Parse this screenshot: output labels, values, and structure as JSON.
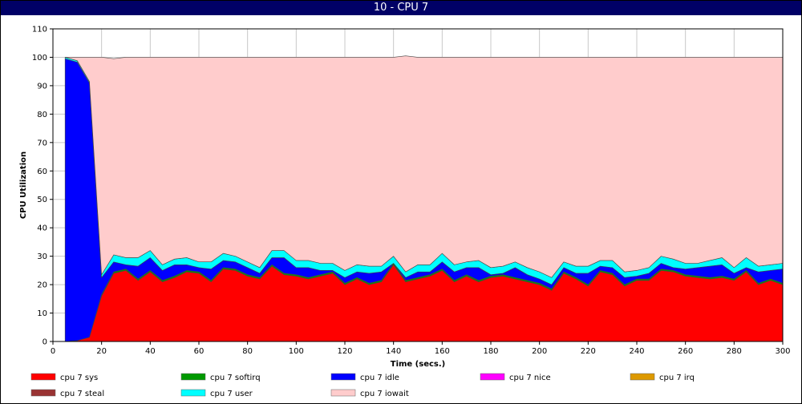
{
  "window": {
    "title": "10 - CPU 7"
  },
  "chart_data": {
    "type": "area",
    "stacked": true,
    "xlabel": "Time (secs.)",
    "ylabel": "CPU Utilization",
    "xlim": [
      0,
      300
    ],
    "ylim": [
      0,
      110
    ],
    "xticks": [
      0,
      20,
      40,
      60,
      80,
      100,
      120,
      140,
      160,
      180,
      200,
      220,
      240,
      260,
      280,
      300
    ],
    "yticks": [
      0,
      10,
      20,
      30,
      40,
      50,
      60,
      70,
      80,
      90,
      100,
      110
    ],
    "grid": true,
    "legend_position": "bottom",
    "x": [
      5,
      10,
      15,
      20,
      25,
      30,
      35,
      40,
      45,
      50,
      55,
      60,
      65,
      70,
      75,
      80,
      85,
      90,
      95,
      100,
      105,
      110,
      115,
      120,
      125,
      130,
      135,
      140,
      145,
      150,
      155,
      160,
      165,
      170,
      175,
      180,
      185,
      190,
      195,
      200,
      205,
      210,
      215,
      220,
      225,
      230,
      235,
      240,
      245,
      250,
      255,
      260,
      265,
      270,
      275,
      280,
      285,
      290,
      295,
      300
    ],
    "series": [
      {
        "name": "cpu 7 sys",
        "color": "#ff0000",
        "values": [
          0,
          0.3,
          1.5,
          16,
          24,
          25,
          21.5,
          24.5,
          21,
          22.5,
          24.5,
          24,
          21,
          25.5,
          25,
          23,
          22,
          26.5,
          23.5,
          23,
          22,
          23,
          24,
          20,
          22,
          20,
          21,
          27,
          21,
          22,
          23,
          25,
          21,
          23,
          21,
          22.5,
          23,
          22,
          21,
          20,
          18,
          24,
          22,
          19.5,
          24.5,
          23.5,
          19.5,
          21.5,
          21.5,
          25,
          24.5,
          23,
          22.5,
          22,
          22.5,
          21.5,
          24.5,
          20,
          21.5,
          20
        ]
      },
      {
        "name": "cpu 7 softirq",
        "color": "#009900",
        "values": [
          0,
          0,
          0,
          0.5,
          0.5,
          0.5,
          0.5,
          0.5,
          0.5,
          0.5,
          0.5,
          0.5,
          0.5,
          0.5,
          0.5,
          0.5,
          0.5,
          0.5,
          0.5,
          0.5,
          0.5,
          0.5,
          0.5,
          0.5,
          0.5,
          0.5,
          0.5,
          0.5,
          0.5,
          0.5,
          0.5,
          0.5,
          0.5,
          0.5,
          0.5,
          0.5,
          0.5,
          0.5,
          0.5,
          0.5,
          0.5,
          0.5,
          0.5,
          0.5,
          0.5,
          0.5,
          0.5,
          0.5,
          0.5,
          0.5,
          0.5,
          0.5,
          0.5,
          0.5,
          0.5,
          0.5,
          0.5,
          0.5,
          0.5,
          0.5
        ]
      },
      {
        "name": "cpu 7 idle",
        "color": "#0000ff",
        "values": [
          99.5,
          98,
          89.5,
          6,
          3.5,
          1.5,
          4.5,
          4.5,
          3.5,
          4,
          2,
          1.5,
          4,
          2.5,
          2.5,
          2.5,
          1.5,
          2.5,
          5.5,
          2.5,
          3.5,
          1.5,
          0.5,
          2,
          2,
          3.5,
          3,
          0,
          1,
          2,
          1,
          2.5,
          3,
          2.5,
          4.5,
          0.5,
          0.5,
          3.5,
          2,
          1.5,
          1.5,
          1.5,
          1.5,
          4,
          1.5,
          2,
          2.5,
          1,
          2,
          2,
          1,
          2,
          3,
          4,
          4,
          2,
          1,
          4,
          3,
          5
        ]
      },
      {
        "name": "cpu 7 nice",
        "color": "#ff00ff",
        "values": [
          0,
          0,
          0,
          0,
          0,
          0,
          0,
          0,
          0,
          0,
          0,
          0,
          0,
          0,
          0,
          0,
          0,
          0,
          0,
          0,
          0,
          0,
          0,
          0,
          0,
          0,
          0,
          0,
          0,
          0,
          0,
          0,
          0,
          0,
          0,
          0,
          0,
          0,
          0,
          0,
          0,
          0,
          0,
          0,
          0,
          0,
          0,
          0,
          0,
          0,
          0,
          0,
          0,
          0,
          0,
          0,
          0,
          0,
          0,
          0
        ]
      },
      {
        "name": "cpu 7 irq",
        "color": "#dd9900",
        "values": [
          0,
          0,
          0,
          0,
          0,
          0,
          0,
          0,
          0,
          0,
          0,
          0,
          0,
          0,
          0,
          0,
          0,
          0,
          0,
          0,
          0,
          0,
          0,
          0,
          0,
          0,
          0,
          0,
          0,
          0,
          0,
          0,
          0,
          0,
          0,
          0,
          0,
          0,
          0,
          0,
          0,
          0,
          0,
          0,
          0,
          0,
          0,
          0,
          0,
          0,
          0,
          0,
          0,
          0,
          0,
          0,
          0,
          0,
          0,
          0
        ]
      },
      {
        "name": "cpu 7 steal",
        "color": "#993333",
        "values": [
          0,
          0,
          0,
          0,
          0,
          0,
          0,
          0,
          0,
          0,
          0,
          0,
          0,
          0,
          0,
          0,
          0,
          0,
          0,
          0,
          0,
          0,
          0,
          0,
          0,
          0,
          0,
          0,
          0,
          0,
          0,
          0,
          0,
          0,
          0,
          0,
          0,
          0,
          0,
          0,
          0,
          0,
          0,
          0,
          0,
          0,
          0,
          0,
          0,
          0,
          0,
          0,
          0,
          0,
          0,
          0,
          0,
          0,
          0,
          0
        ]
      },
      {
        "name": "cpu 7 user",
        "color": "#00ffff",
        "values": [
          0.5,
          0.5,
          0.5,
          1,
          2.5,
          2.5,
          3,
          2.5,
          2,
          2,
          2.5,
          2,
          2.5,
          2.5,
          2,
          2,
          2,
          2.5,
          2.5,
          2.5,
          2.5,
          2.5,
          2.5,
          2.5,
          2.5,
          2.5,
          2,
          2.5,
          2,
          2.5,
          2.5,
          3,
          2.5,
          2,
          2.5,
          2.5,
          2.5,
          2,
          2.5,
          2.5,
          2.5,
          2,
          2.5,
          2.5,
          2,
          2.5,
          2,
          2,
          2,
          2.5,
          3,
          2,
          1.5,
          2,
          2.5,
          2,
          3.5,
          2,
          2,
          2
        ]
      },
      {
        "name": "cpu 7 iowait",
        "color": "#ffcccc",
        "values": [
          0,
          1.2,
          8.5,
          76.5,
          69,
          70.5,
          70.5,
          68,
          73,
          71,
          70.5,
          72,
          72,
          69,
          70,
          72,
          74,
          68,
          68,
          71.5,
          71.5,
          72.5,
          72.5,
          75,
          73,
          73.5,
          73.5,
          70,
          76,
          73,
          73,
          69,
          73,
          72,
          71.5,
          74,
          73.5,
          72,
          74,
          75.5,
          77.5,
          72,
          73.5,
          73.5,
          71.5,
          71.5,
          75.5,
          75,
          74,
          70,
          71,
          72.5,
          72.5,
          71.5,
          70.5,
          74,
          70.5,
          73.5,
          73,
          72.5
        ]
      }
    ]
  }
}
